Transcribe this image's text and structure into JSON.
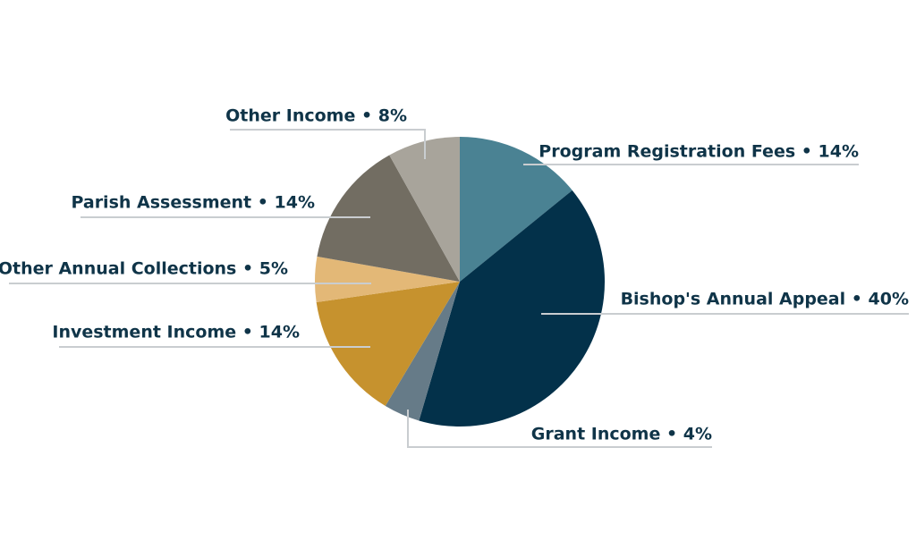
{
  "chart_data": {
    "type": "pie",
    "title": "",
    "unit": "%",
    "slices": [
      {
        "name": "Program Registration Fees",
        "value": 14,
        "color": "#4a8293",
        "label": "Program Registration Fees • 14%"
      },
      {
        "name": "Bishop's Annual Appeal",
        "value": 40,
        "color": "#03314a",
        "label": "Bishop's Annual Appeal • 40%"
      },
      {
        "name": "Grant Income",
        "value": 4,
        "color": "#667b88",
        "label": "Grant Income • 4%"
      },
      {
        "name": "Investment Income",
        "value": 14,
        "color": "#c6922e",
        "label": "Investment Income • 14%"
      },
      {
        "name": "Other Annual Collections",
        "value": 5,
        "color": "#e3b877",
        "label": "Other Annual Collections • 5%"
      },
      {
        "name": "Parish Assessment",
        "value": 14,
        "color": "#726d62",
        "label": "Parish Assessment • 14%"
      },
      {
        "name": "Other Income",
        "value": 8,
        "color": "#a8a49b",
        "label": "Other Income • 8%"
      }
    ]
  }
}
